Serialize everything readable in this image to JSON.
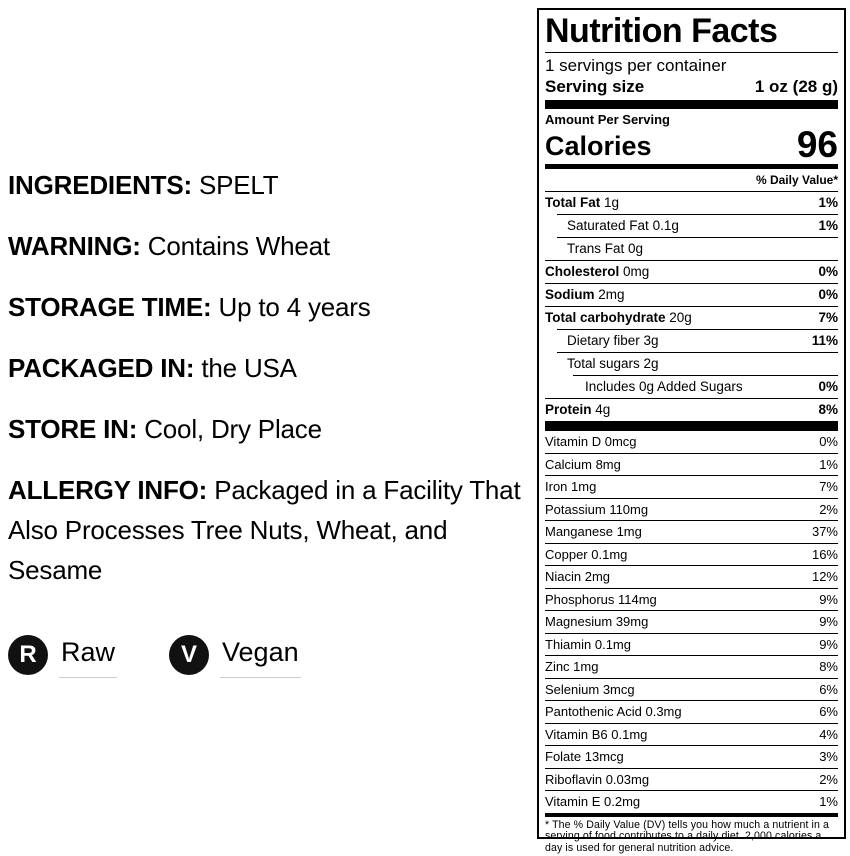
{
  "product_info": {
    "items": [
      {
        "label": "INGREDIENTS:",
        "value": "SPELT"
      },
      {
        "label": "WARNING:",
        "value": "Contains Wheat"
      },
      {
        "label": "STORAGE TIME:",
        "value": "Up to 4 years"
      },
      {
        "label": "PACKAGED IN:",
        "value": "the USA"
      },
      {
        "label": "STORE IN:",
        "value": "Cool, Dry Place"
      },
      {
        "label": "ALLERGY INFO:",
        "value": "Packaged in a Facility That Also Processes Tree Nuts, Wheat, and Sesame"
      }
    ],
    "badges": [
      {
        "letter": "R",
        "label": "Raw",
        "icon": "raw-badge-icon"
      },
      {
        "letter": "V",
        "label": "Vegan",
        "icon": "vegan-badge-icon"
      }
    ],
    "badge_color": "#111111"
  },
  "nutrition": {
    "title": "Nutrition Facts",
    "servings_per_container": "1 servings per container",
    "serving_size_label": "Serving size",
    "serving_size_value": "1 oz (28 g)",
    "amount_per_serving": "Amount Per Serving",
    "calories_label": "Calories",
    "calories_value": "96",
    "daily_value_header": "% Daily Value*",
    "macro_rows": [
      {
        "name": "Total Fat",
        "amount": "1g",
        "dv": "1%",
        "bold": true,
        "indent": 0
      },
      {
        "name": "Saturated Fat",
        "amount": "0.1g",
        "dv": "1%",
        "bold": false,
        "indent": 1
      },
      {
        "name": "Trans Fat",
        "amount": "0g",
        "dv": "",
        "bold": false,
        "indent": 1
      },
      {
        "name": "Cholesterol",
        "amount": "0mg",
        "dv": "0%",
        "bold": true,
        "indent": 0
      },
      {
        "name": "Sodium",
        "amount": "2mg",
        "dv": "0%",
        "bold": true,
        "indent": 0
      },
      {
        "name": "Total carbohydrate",
        "amount": "20g",
        "dv": "7%",
        "bold": true,
        "indent": 0
      },
      {
        "name": "Dietary fiber",
        "amount": "3g",
        "dv": "11%",
        "bold": false,
        "indent": 1
      },
      {
        "name": "Total sugars",
        "amount": "2g",
        "dv": "",
        "bold": false,
        "indent": 1
      },
      {
        "name": "Includes 0g Added Sugars",
        "amount": "",
        "dv": "0%",
        "bold": false,
        "indent": 2
      },
      {
        "name": "Protein",
        "amount": "4g",
        "dv": "8%",
        "bold": true,
        "indent": 0
      }
    ],
    "micro_rows": [
      {
        "name": "Vitamin D",
        "amount": "0mcg",
        "dv": "0%"
      },
      {
        "name": "Calcium",
        "amount": "8mg",
        "dv": "1%"
      },
      {
        "name": "Iron",
        "amount": "1mg",
        "dv": "7%"
      },
      {
        "name": "Potassium",
        "amount": "110mg",
        "dv": "2%"
      },
      {
        "name": "Manganese",
        "amount": "1mg",
        "dv": "37%"
      },
      {
        "name": "Copper",
        "amount": "0.1mg",
        "dv": "16%"
      },
      {
        "name": "Niacin",
        "amount": "2mg",
        "dv": "12%"
      },
      {
        "name": "Phosphorus",
        "amount": "114mg",
        "dv": "9%"
      },
      {
        "name": "Magnesium",
        "amount": "39mg",
        "dv": "9%"
      },
      {
        "name": "Thiamin",
        "amount": "0.1mg",
        "dv": "9%"
      },
      {
        "name": "Zinc",
        "amount": "1mg",
        "dv": "8%"
      },
      {
        "name": "Selenium",
        "amount": "3mcg",
        "dv": "6%"
      },
      {
        "name": "Pantothenic Acid",
        "amount": "0.3mg",
        "dv": "6%"
      },
      {
        "name": "Vitamin B6",
        "amount": "0.1mg",
        "dv": "4%"
      },
      {
        "name": "Folate",
        "amount": "13mcg",
        "dv": "3%"
      },
      {
        "name": "Riboflavin",
        "amount": "0.03mg",
        "dv": "2%"
      },
      {
        "name": "Vitamin E",
        "amount": "0.2mg",
        "dv": "1%"
      }
    ],
    "footnote": "* The % Daily Value (DV) tells you how much a nutrient in a serving of food contributes to a daily diet. 2,000 calories a day is used for general nutrition advice."
  }
}
